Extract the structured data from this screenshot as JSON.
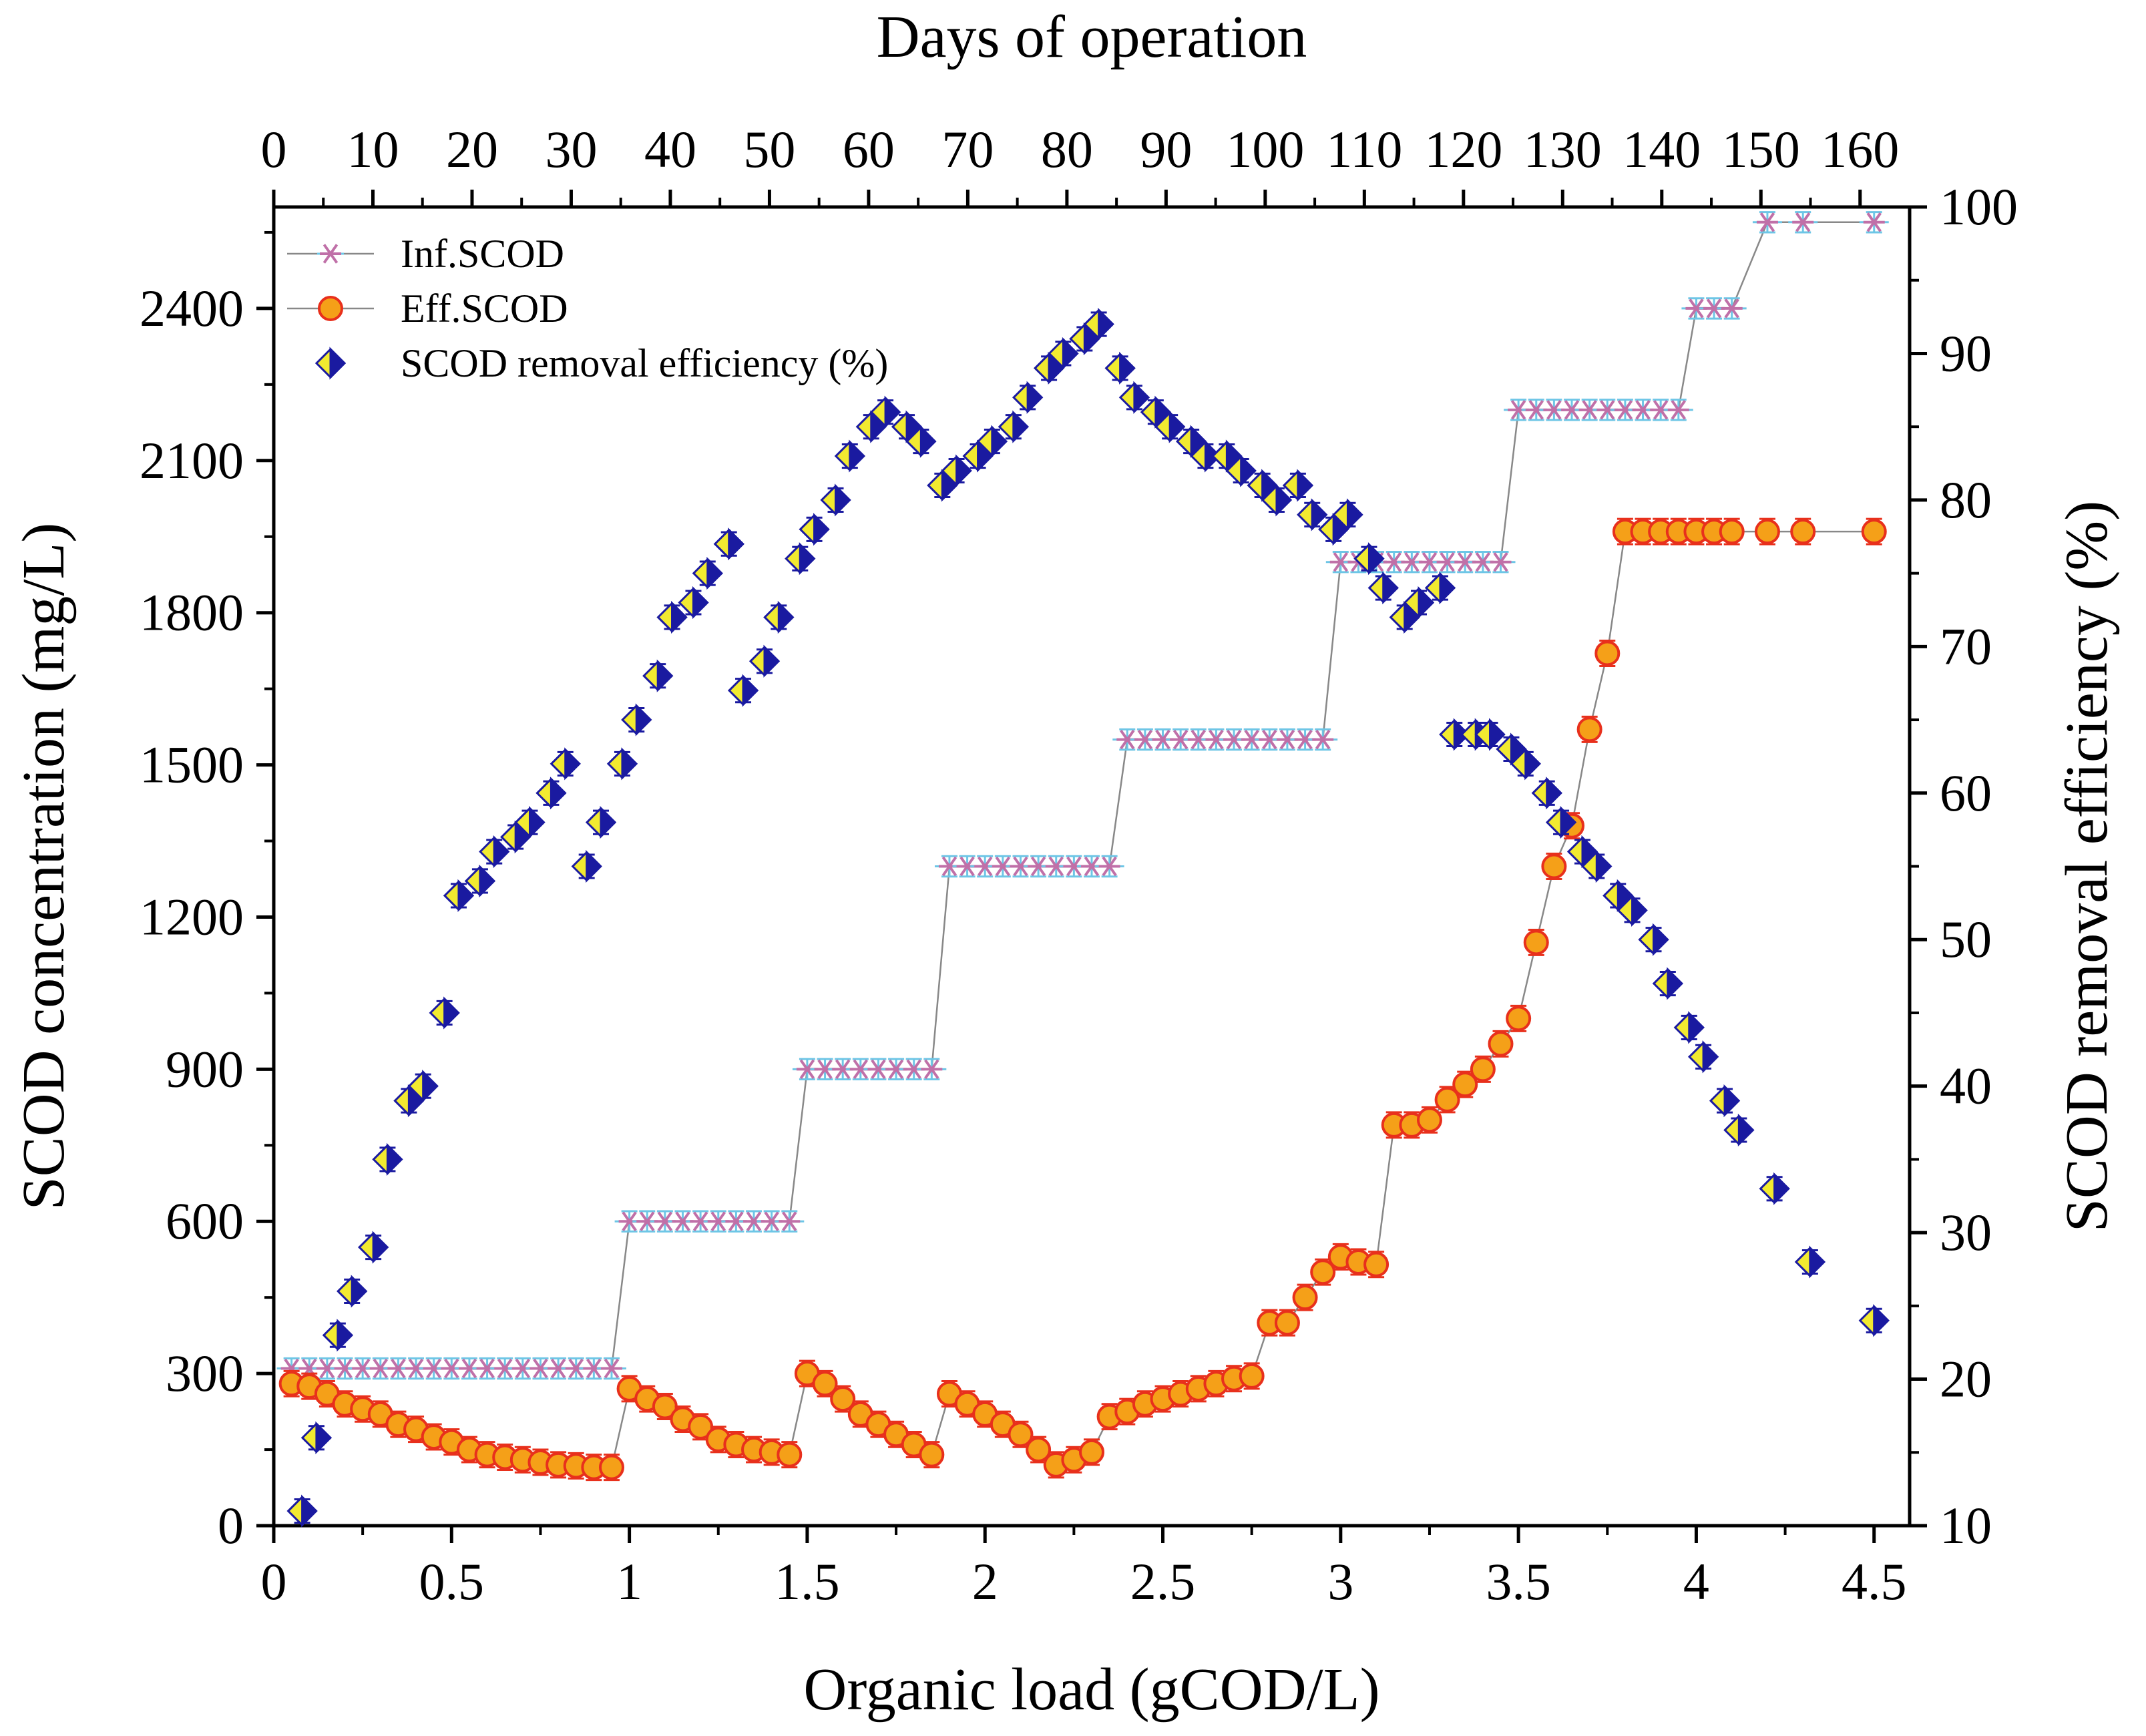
{
  "chart_data": {
    "type": "scatter",
    "x_bottom": {
      "title": "Organic load (gCOD/L)",
      "range": [
        0,
        4.6
      ],
      "tick_labels": [
        {
          "value": 0,
          "label": "0"
        },
        {
          "value": 0.5,
          "label": "0.5"
        },
        {
          "value": 1,
          "label": "1"
        },
        {
          "value": 1.5,
          "label": "1.5"
        },
        {
          "value": 2,
          "label": "2"
        },
        {
          "value": 2.5,
          "label": "2.5"
        },
        {
          "value": 3,
          "label": "3"
        },
        {
          "value": 3.5,
          "label": "3.5"
        },
        {
          "value": 4,
          "label": "4"
        },
        {
          "value": 4.5,
          "label": "4.5"
        }
      ]
    },
    "x_top": {
      "title": "Days of operation",
      "range": [
        0,
        165
      ],
      "tick_labels": [
        {
          "value": 0,
          "label": "0"
        },
        {
          "value": 10,
          "label": "10"
        },
        {
          "value": 20,
          "label": "20"
        },
        {
          "value": 30,
          "label": "30"
        },
        {
          "value": 40,
          "label": "40"
        },
        {
          "value": 50,
          "label": "50"
        },
        {
          "value": 60,
          "label": "60"
        },
        {
          "value": 70,
          "label": "70"
        },
        {
          "value": 80,
          "label": "80"
        },
        {
          "value": 90,
          "label": "90"
        },
        {
          "value": 100,
          "label": "100"
        },
        {
          "value": 110,
          "label": "110"
        },
        {
          "value": 120,
          "label": "120"
        },
        {
          "value": 130,
          "label": "130"
        },
        {
          "value": 140,
          "label": "140"
        },
        {
          "value": 150,
          "label": "150"
        },
        {
          "value": 160,
          "label": "160"
        }
      ]
    },
    "y_left": {
      "title": "SCOD concentration (mg/L)",
      "range": [
        0,
        2600
      ],
      "tick_labels": [
        {
          "value": 0,
          "label": "0"
        },
        {
          "value": 300,
          "label": "300"
        },
        {
          "value": 600,
          "label": "600"
        },
        {
          "value": 900,
          "label": "900"
        },
        {
          "value": 1200,
          "label": "1200"
        },
        {
          "value": 1500,
          "label": "1500"
        },
        {
          "value": 1800,
          "label": "1800"
        },
        {
          "value": 2100,
          "label": "2100"
        },
        {
          "value": 2400,
          "label": "2400"
        }
      ]
    },
    "y_right": {
      "title": "SCOD removal efficiency (%)",
      "range": [
        10,
        100
      ],
      "tick_labels": [
        {
          "value": 10,
          "label": "10"
        },
        {
          "value": 20,
          "label": "20"
        },
        {
          "value": 30,
          "label": "30"
        },
        {
          "value": 40,
          "label": "40"
        },
        {
          "value": 50,
          "label": "50"
        },
        {
          "value": 60,
          "label": "60"
        },
        {
          "value": 70,
          "label": "70"
        },
        {
          "value": 80,
          "label": "80"
        },
        {
          "value": 90,
          "label": "90"
        },
        {
          "value": 100,
          "label": "100"
        }
      ]
    },
    "legend": {
      "placement": "top-left",
      "entries": [
        {
          "name": "Inf.SCOD",
          "marker": "asterisk",
          "color": "#6ec6e6",
          "marker_color": "#c070a8"
        },
        {
          "name": "Eff.SCOD",
          "marker": "circle",
          "color": "#e8301c",
          "marker_color": "#f5a018"
        },
        {
          "name": "SCOD removal efficiency (%)",
          "marker": "diamond",
          "color": "#1a1aa0",
          "marker_color": "#f2ea30"
        }
      ]
    },
    "series": [
      {
        "name": "Inf.SCOD",
        "axis": "left",
        "x": [
          0.05,
          0.1,
          0.15,
          0.2,
          0.25,
          0.3,
          0.35,
          0.4,
          0.45,
          0.5,
          0.55,
          0.6,
          0.65,
          0.7,
          0.75,
          0.8,
          0.85,
          0.9,
          0.95,
          1.0,
          1.05,
          1.1,
          1.15,
          1.2,
          1.25,
          1.3,
          1.35,
          1.4,
          1.45,
          1.5,
          1.55,
          1.6,
          1.65,
          1.7,
          1.75,
          1.8,
          1.85,
          1.9,
          1.95,
          2.0,
          2.05,
          2.1,
          2.15,
          2.2,
          2.25,
          2.3,
          2.35,
          2.4,
          2.45,
          2.5,
          2.55,
          2.6,
          2.65,
          2.7,
          2.75,
          2.8,
          2.85,
          2.9,
          2.95,
          3.0,
          3.05,
          3.1,
          3.15,
          3.2,
          3.25,
          3.3,
          3.35,
          3.4,
          3.45,
          3.5,
          3.55,
          3.6,
          3.65,
          3.7,
          3.75,
          3.8,
          3.85,
          3.9,
          3.95,
          4.0,
          4.05,
          4.1,
          4.2,
          4.3,
          4.5
        ],
        "y": [
          310,
          310,
          310,
          310,
          310,
          310,
          310,
          310,
          310,
          310,
          310,
          310,
          310,
          310,
          310,
          310,
          310,
          310,
          310,
          600,
          600,
          600,
          600,
          600,
          600,
          600,
          600,
          600,
          600,
          900,
          900,
          900,
          900,
          900,
          900,
          900,
          900,
          1300,
          1300,
          1300,
          1300,
          1300,
          1300,
          1300,
          1300,
          1300,
          1300,
          1550,
          1550,
          1550,
          1550,
          1550,
          1550,
          1550,
          1550,
          1550,
          1550,
          1550,
          1550,
          1900,
          1900,
          1900,
          1900,
          1900,
          1900,
          1900,
          1900,
          1900,
          1900,
          2200,
          2200,
          2200,
          2200,
          2200,
          2200,
          2200,
          2200,
          2200,
          2200,
          2400,
          2400,
          2400,
          2570,
          2570,
          2570
        ],
        "error": 20
      },
      {
        "name": "Eff.SCOD",
        "axis": "left",
        "x": [
          0.05,
          0.1,
          0.15,
          0.2,
          0.25,
          0.3,
          0.35,
          0.4,
          0.45,
          0.5,
          0.55,
          0.6,
          0.65,
          0.7,
          0.75,
          0.8,
          0.85,
          0.9,
          0.95,
          1.0,
          1.05,
          1.1,
          1.15,
          1.2,
          1.25,
          1.3,
          1.35,
          1.4,
          1.45,
          1.5,
          1.55,
          1.6,
          1.65,
          1.7,
          1.75,
          1.8,
          1.85,
          1.9,
          1.95,
          2.0,
          2.05,
          2.1,
          2.15,
          2.2,
          2.25,
          2.3,
          2.35,
          2.4,
          2.45,
          2.5,
          2.55,
          2.6,
          2.65,
          2.7,
          2.75,
          2.8,
          2.85,
          2.9,
          2.95,
          3.0,
          3.05,
          3.1,
          3.15,
          3.2,
          3.25,
          3.3,
          3.35,
          3.4,
          3.45,
          3.5,
          3.55,
          3.6,
          3.65,
          3.7,
          3.75,
          3.8,
          3.85,
          3.9,
          3.95,
          4.0,
          4.05,
          4.1,
          4.2,
          4.3,
          4.5
        ],
        "y": [
          280,
          275,
          260,
          240,
          230,
          220,
          200,
          190,
          175,
          165,
          150,
          140,
          135,
          130,
          125,
          120,
          118,
          115,
          115,
          270,
          250,
          235,
          210,
          195,
          170,
          160,
          150,
          145,
          140,
          300,
          280,
          250,
          220,
          200,
          180,
          160,
          140,
          260,
          240,
          220,
          200,
          180,
          150,
          120,
          130,
          145,
          215,
          225,
          240,
          250,
          260,
          270,
          280,
          290,
          295,
          400,
          400,
          450,
          500,
          530,
          520,
          515,
          790,
          790,
          800,
          840,
          870,
          900,
          950,
          1000,
          1150,
          1300,
          1380,
          1570,
          1720,
          1960,
          1960,
          1960,
          1960,
          1960,
          1960,
          1960,
          1960,
          1960,
          1960
        ],
        "error": 25
      },
      {
        "name": "SCOD removal efficiency (%)",
        "axis": "right",
        "x": [
          0.08,
          0.12,
          0.18,
          0.22,
          0.28,
          0.32,
          0.38,
          0.42,
          0.48,
          0.52,
          0.58,
          0.62,
          0.68,
          0.72,
          0.78,
          0.82,
          0.88,
          0.92,
          0.98,
          1.02,
          1.08,
          1.12,
          1.18,
          1.22,
          1.28,
          1.32,
          1.38,
          1.42,
          1.48,
          1.52,
          1.58,
          1.62,
          1.68,
          1.72,
          1.78,
          1.82,
          1.88,
          1.92,
          1.98,
          2.02,
          2.08,
          2.12,
          2.18,
          2.22,
          2.28,
          2.32,
          2.38,
          2.42,
          2.48,
          2.52,
          2.58,
          2.62,
          2.68,
          2.72,
          2.78,
          2.82,
          2.88,
          2.92,
          2.98,
          3.02,
          3.08,
          3.12,
          3.18,
          3.22,
          3.28,
          3.32,
          3.38,
          3.42,
          3.48,
          3.52,
          3.58,
          3.62,
          3.68,
          3.72,
          3.78,
          3.82,
          3.88,
          3.92,
          3.98,
          4.02,
          4.08,
          4.12,
          4.22,
          4.32,
          4.5
        ],
        "y": [
          11,
          16,
          23,
          26,
          29,
          35,
          39,
          40,
          45,
          53,
          54,
          56,
          57,
          58,
          60,
          62,
          55,
          58,
          62,
          65,
          68,
          72,
          73,
          75,
          77,
          67,
          69,
          72,
          76,
          78,
          80,
          83,
          85,
          86,
          85,
          84,
          81,
          82,
          83,
          84,
          85,
          87,
          89,
          90,
          91,
          92,
          89,
          87,
          86,
          85,
          84,
          83,
          83,
          82,
          81,
          80,
          81,
          79,
          78,
          79,
          76,
          74,
          72,
          73,
          74,
          64,
          64,
          64,
          63,
          62,
          60,
          58,
          56,
          55,
          53,
          52,
          50,
          47,
          44,
          42,
          39,
          37,
          33,
          28,
          24
        ],
        "error": 0.8
      }
    ]
  }
}
